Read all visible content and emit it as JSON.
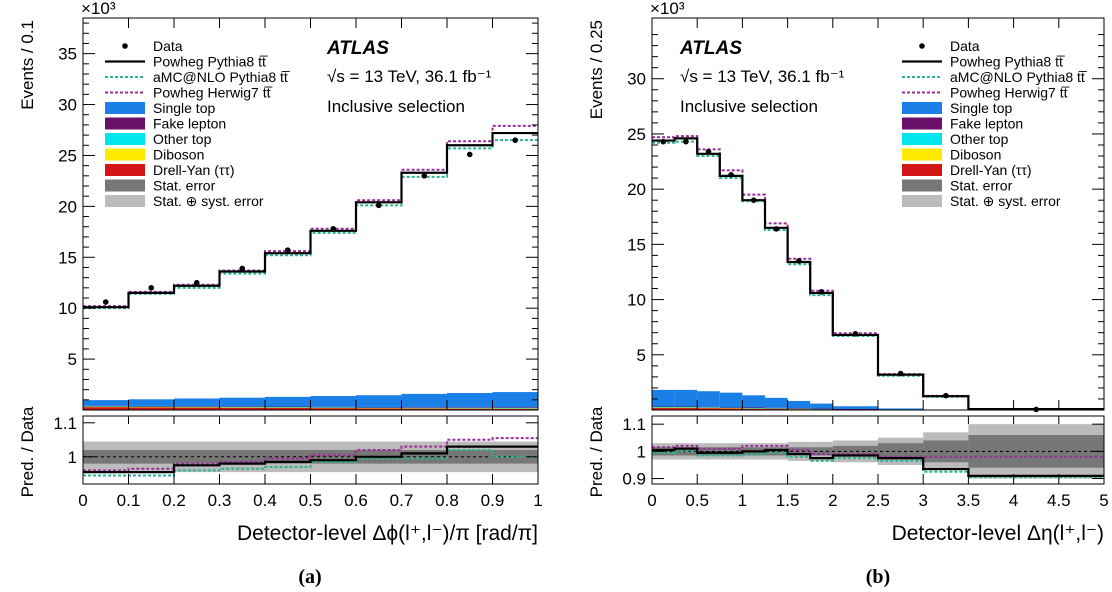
{
  "legend_labels": {
    "data": "Data",
    "powheg_pythia8": "Powheg Pythia8 tt̅",
    "amcnlo_pythia8": "aMC@NLO Pythia8 tt̅",
    "powheg_herwig7": "Powheg Herwig7 tt̅",
    "single_top": "Single top",
    "fake_lepton": "Fake lepton",
    "other_top": "Other top",
    "diboson": "Diboson",
    "drell_yan": "Drell-Yan (ττ)",
    "stat_error": "Stat. error",
    "stat_syst_error": "Stat. ⊕ syst. error"
  },
  "atlas_label": "ATLAS",
  "energy_label": "√s = 13 TeV, 36.1 fb⁻¹",
  "selection_label": "Inclusive selection",
  "colors": {
    "nominal": "#000000",
    "amcnlo": "#2ab592",
    "herwig": "#9a2f9a",
    "single_top": "#1a7fe6",
    "fake_lepton": "#6a0f6a",
    "other_top": "#00e5ee",
    "diboson": "#ffea00",
    "drell_yan": "#d41515",
    "stat_band": "#777777",
    "syst_band": "#bbbbbb"
  },
  "chart_data": [
    {
      "type": "bar",
      "panel_caption": "(a)",
      "xlabel": "Detector-level Δϕ(l⁺,l⁻)/π [rad/π]",
      "ylabel": "Events / 0.1",
      "ratio_ylabel": "Pred. / Data",
      "y_exponent": "×10³",
      "xlim": [
        0,
        1
      ],
      "ylim": [
        0,
        38.5
      ],
      "ratio_ylim": [
        0.92,
        1.12
      ],
      "x_ticks": [
        "0",
        "0.1",
        "0.2",
        "0.3",
        "0.4",
        "0.5",
        "0.6",
        "0.7",
        "0.8",
        "0.9",
        "1"
      ],
      "y_ticks": [
        "5",
        "10",
        "15",
        "20",
        "25",
        "30",
        "35"
      ],
      "ratio_y_ticks": [
        "1",
        "1.1"
      ],
      "bin_edges": [
        0,
        0.1,
        0.2,
        0.3,
        0.4,
        0.5,
        0.6,
        0.7,
        0.8,
        0.9,
        1.0
      ],
      "series": [
        {
          "name": "Data",
          "values": [
            10.6,
            12.0,
            12.5,
            13.9,
            15.7,
            17.8,
            20.1,
            23.0,
            25.1,
            26.5
          ]
        },
        {
          "name": "Powheg Pythia8 tt̅",
          "values": [
            10.1,
            11.5,
            12.2,
            13.6,
            15.4,
            17.6,
            20.4,
            23.3,
            26.0,
            27.2
          ]
        },
        {
          "name": "aMC@NLO Pythia8 tt̅",
          "values": [
            10.0,
            11.4,
            12.0,
            13.4,
            15.2,
            17.4,
            20.1,
            22.9,
            25.7,
            26.5
          ]
        },
        {
          "name": "Powheg Herwig7 tt̅",
          "values": [
            10.2,
            11.6,
            12.3,
            13.7,
            15.6,
            17.8,
            20.6,
            23.6,
            26.4,
            27.9
          ]
        },
        {
          "name": "Single top",
          "values": [
            0.55,
            0.65,
            0.75,
            0.85,
            0.95,
            1.05,
            1.15,
            1.3,
            1.4,
            1.5
          ]
        },
        {
          "name": "Fake lepton",
          "values": [
            0.05,
            0.05,
            0.05,
            0.05,
            0.05,
            0.05,
            0.05,
            0.05,
            0.05,
            0.05
          ]
        },
        {
          "name": "Other top",
          "values": [
            0.04,
            0.04,
            0.04,
            0.04,
            0.04,
            0.04,
            0.04,
            0.04,
            0.04,
            0.04
          ]
        },
        {
          "name": "Diboson",
          "values": [
            0.03,
            0.03,
            0.03,
            0.03,
            0.03,
            0.03,
            0.03,
            0.03,
            0.03,
            0.03
          ]
        },
        {
          "name": "Drell-Yan (ττ)",
          "values": [
            0.3,
            0.28,
            0.26,
            0.24,
            0.22,
            0.2,
            0.18,
            0.16,
            0.15,
            0.14
          ]
        }
      ],
      "ratio": {
        "powheg_pythia8": [
          0.955,
          0.955,
          0.975,
          0.98,
          0.985,
          0.99,
          1.0,
          1.01,
          1.03,
          1.03
        ],
        "amcnlo_pythia8": [
          0.945,
          0.945,
          0.96,
          0.965,
          0.97,
          0.985,
          0.995,
          0.995,
          1.02,
          1.0
        ],
        "powheg_herwig7": [
          0.96,
          0.965,
          0.98,
          0.985,
          0.995,
          1.005,
          1.02,
          1.03,
          1.05,
          1.055
        ],
        "stat_half_width": [
          0.02,
          0.02,
          0.02,
          0.02,
          0.02,
          0.02,
          0.02,
          0.02,
          0.02,
          0.02
        ],
        "syst_half_width": [
          0.045,
          0.045,
          0.045,
          0.045,
          0.045,
          0.045,
          0.045,
          0.045,
          0.045,
          0.045
        ]
      }
    },
    {
      "type": "bar",
      "panel_caption": "(b)",
      "xlabel": "Detector-level Δη(l⁺,l⁻)",
      "ylabel": "Events / 0.25",
      "ratio_ylabel": "Pred. / Data",
      "y_exponent": "×10³",
      "xlim": [
        0,
        5
      ],
      "ylim": [
        0,
        35.5
      ],
      "ratio_ylim": [
        0.88,
        1.13
      ],
      "x_ticks": [
        "0",
        "0.5",
        "1",
        "1.5",
        "2",
        "2.5",
        "3",
        "3.5",
        "4",
        "4.5",
        "5"
      ],
      "y_ticks": [
        "5",
        "10",
        "15",
        "20",
        "25",
        "30"
      ],
      "ratio_y_ticks": [
        "0.9",
        "1",
        "1.1"
      ],
      "bin_edges": [
        0,
        0.25,
        0.5,
        0.75,
        1.0,
        1.25,
        1.5,
        1.75,
        2.0,
        2.5,
        3.0,
        3.5,
        5.0
      ],
      "series": [
        {
          "name": "Data",
          "values": [
            24.3,
            24.3,
            23.4,
            21.3,
            19.0,
            16.4,
            13.5,
            10.7,
            6.9,
            3.3,
            1.3,
            0.05
          ]
        },
        {
          "name": "Powheg Pythia8 tt̅",
          "values": [
            24.4,
            24.6,
            23.2,
            21.2,
            19.0,
            16.5,
            13.4,
            10.6,
            6.8,
            3.2,
            1.25,
            0.08
          ]
        },
        {
          "name": "aMC@NLO Pythia8 tt̅",
          "values": [
            24.2,
            24.3,
            23.0,
            21.0,
            18.9,
            16.3,
            13.2,
            10.4,
            6.7,
            3.1,
            1.2,
            0.08
          ]
        },
        {
          "name": "Powheg Herwig7 tt̅",
          "values": [
            24.7,
            24.8,
            23.6,
            21.7,
            19.5,
            16.9,
            13.7,
            10.8,
            6.95,
            3.25,
            1.28,
            0.08
          ]
        },
        {
          "name": "Single top",
          "values": [
            1.5,
            1.5,
            1.4,
            1.3,
            1.1,
            0.9,
            0.65,
            0.45,
            0.25,
            0.1,
            0.03,
            0.0
          ]
        },
        {
          "name": "Fake lepton",
          "values": [
            0.05,
            0.05,
            0.05,
            0.04,
            0.04,
            0.03,
            0.03,
            0.02,
            0.02,
            0.01,
            0.0,
            0.0
          ]
        },
        {
          "name": "Other top",
          "values": [
            0.04,
            0.04,
            0.04,
            0.04,
            0.03,
            0.03,
            0.02,
            0.02,
            0.01,
            0.01,
            0.0,
            0.0
          ]
        },
        {
          "name": "Diboson",
          "values": [
            0.03,
            0.03,
            0.03,
            0.03,
            0.02,
            0.02,
            0.02,
            0.01,
            0.01,
            0.0,
            0.0,
            0.0
          ]
        },
        {
          "name": "Drell-Yan (ττ)",
          "values": [
            0.2,
            0.2,
            0.18,
            0.16,
            0.14,
            0.12,
            0.1,
            0.08,
            0.05,
            0.02,
            0.01,
            0.0
          ]
        }
      ],
      "ratio": {
        "powheg_pythia8": [
          1.005,
          1.01,
          0.995,
          0.995,
          1.0,
          1.005,
          0.99,
          0.975,
          0.985,
          0.975,
          0.935,
          0.91
        ],
        "amcnlo_pythia8": [
          0.995,
          1.0,
          0.985,
          0.985,
          0.99,
          0.995,
          0.98,
          0.965,
          0.975,
          0.965,
          0.925,
          0.905
        ],
        "powheg_herwig7": [
          1.015,
          1.02,
          1.01,
          1.01,
          1.02,
          1.02,
          1.005,
          0.99,
          0.99,
          0.98,
          0.98,
          0.98
        ],
        "stat_half_width": [
          0.015,
          0.015,
          0.015,
          0.015,
          0.015,
          0.015,
          0.015,
          0.015,
          0.02,
          0.03,
          0.04,
          0.06
        ],
        "syst_half_width": [
          0.03,
          0.03,
          0.03,
          0.03,
          0.03,
          0.03,
          0.035,
          0.035,
          0.04,
          0.05,
          0.07,
          0.1
        ]
      }
    }
  ]
}
